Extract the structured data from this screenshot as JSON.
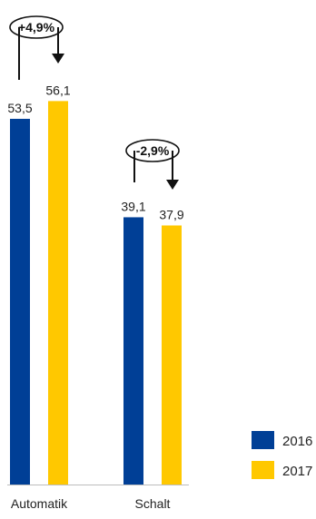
{
  "chart_data": {
    "type": "bar",
    "categories": [
      "Automatik",
      "Schalt"
    ],
    "series": [
      {
        "name": "2016",
        "values": [
          53.5,
          39.1
        ],
        "labels": [
          "53,5",
          "39,1"
        ],
        "color": "#003f96"
      },
      {
        "name": "2017",
        "values": [
          56.1,
          37.9
        ],
        "labels": [
          "56,1",
          "37,9"
        ],
        "color": "#ffc800"
      }
    ],
    "annotations": [
      "+4,9%",
      "-2,9%"
    ],
    "title": "",
    "xlabel": "",
    "ylabel": "",
    "ylim": [
      0,
      60
    ],
    "grid": false,
    "legend": "bottom-right"
  }
}
